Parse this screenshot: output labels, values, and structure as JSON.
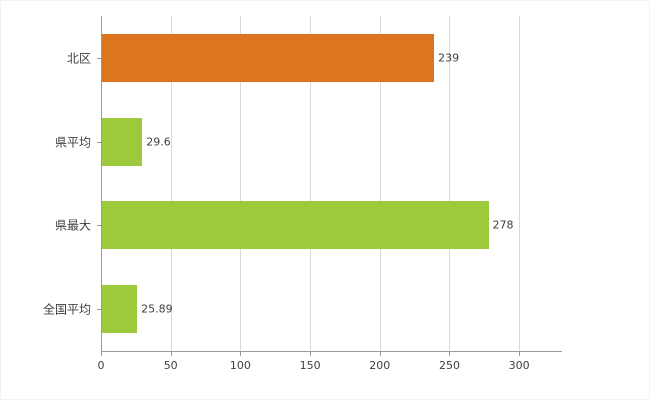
{
  "chart_data": {
    "type": "bar",
    "orientation": "horizontal",
    "title": "",
    "xlabel": "",
    "ylabel": "",
    "categories": [
      "北区",
      "県平均",
      "県最大",
      "全国平均"
    ],
    "values": [
      239,
      29.6,
      278,
      25.89
    ],
    "value_labels": [
      "239",
      "29.6",
      "278",
      "25.89"
    ],
    "bar_colors": [
      "#dd7420",
      "#9cca3c",
      "#9cca3c",
      "#9cca3c"
    ],
    "xticks": [
      0,
      50,
      100,
      150,
      200,
      250,
      300
    ],
    "xlim": [
      0,
      330
    ],
    "grid": "vertical-gridlines",
    "legend": "none"
  },
  "colors": {
    "gridline": "#d9d9d9",
    "axis": "#9a9a9a",
    "text": "#3f3f3f",
    "background": "#ffffff",
    "orange_bar": "#dd7420",
    "green_bar": "#9cca3c"
  }
}
